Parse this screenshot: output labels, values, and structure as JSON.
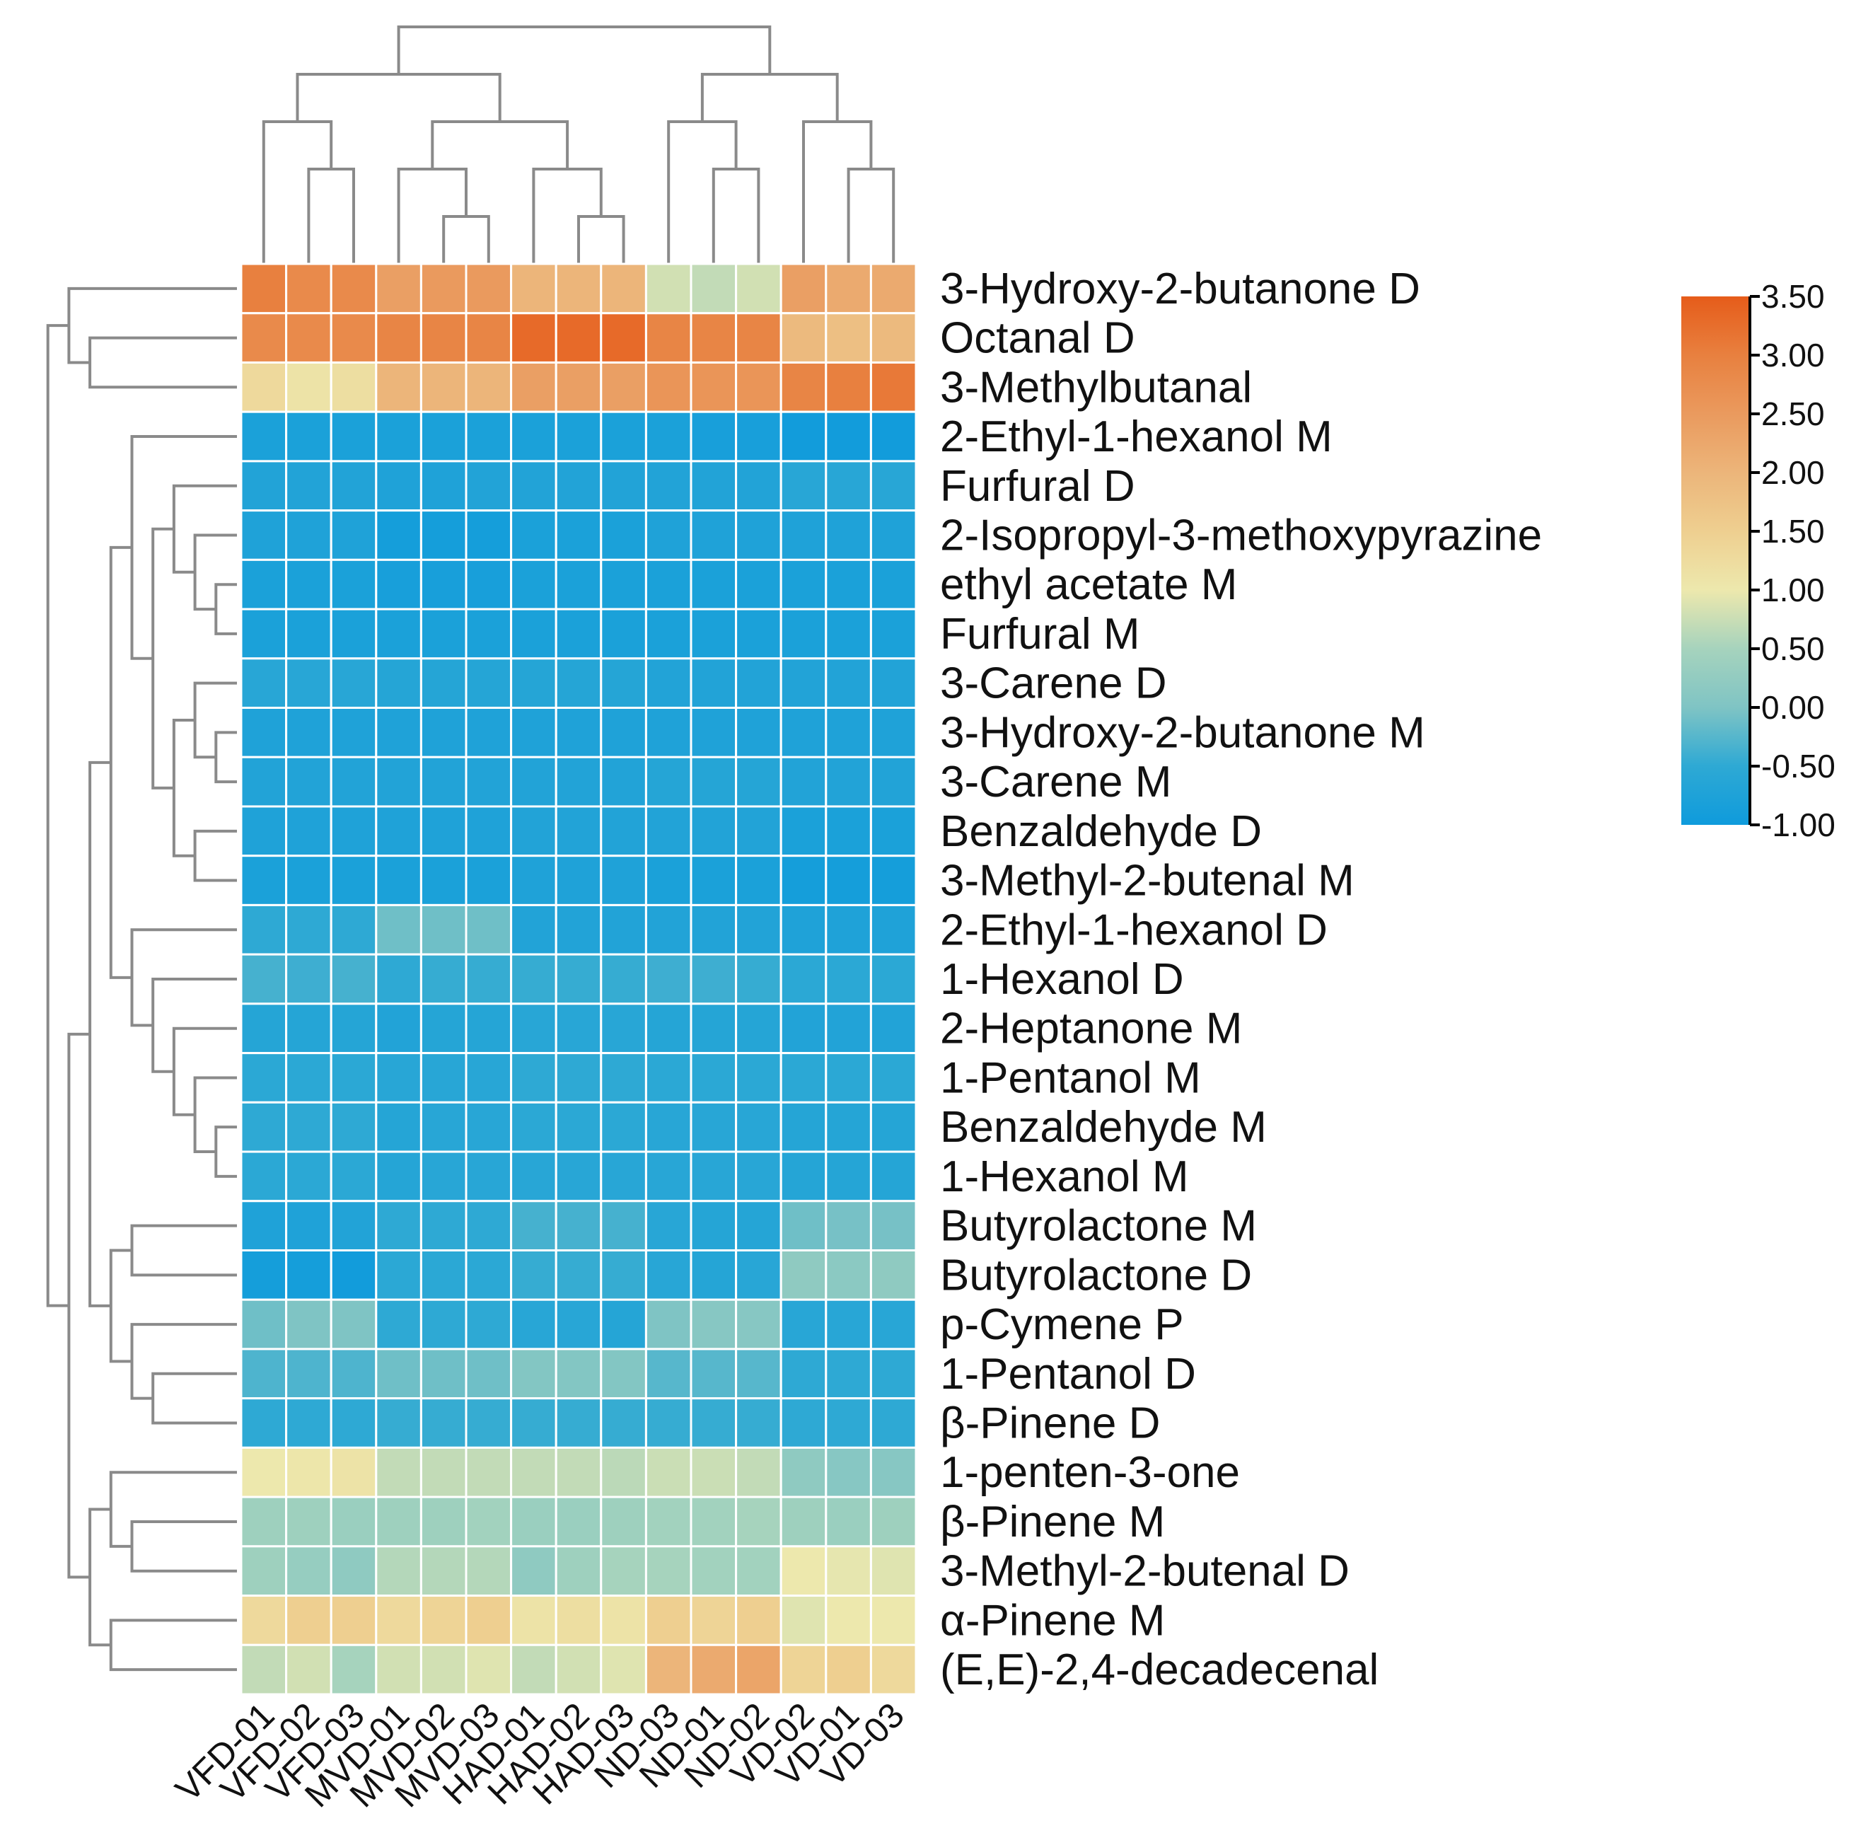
{
  "chart_data": {
    "type": "heatmap",
    "title": "",
    "columns": [
      "VFD-01",
      "VFD-02",
      "VFD-03",
      "MVD-01",
      "MVD-02",
      "MVD-03",
      "HAD-01",
      "HAD-02",
      "HAD-03",
      "ND-03",
      "ND-01",
      "ND-02",
      "VD-02",
      "VD-01",
      "VD-03"
    ],
    "rows": [
      "3-Hydroxy-2-butanone D",
      "Octanal D",
      "3-Methylbutanal",
      "2-Ethyl-1-hexanol M",
      "Furfural D",
      "2-Isopropyl-3-methoxypyrazine",
      "ethyl acetate M",
      "Furfural M",
      "3-Carene D",
      "3-Hydroxy-2-butanone M",
      "3-Carene M",
      "Benzaldehyde D",
      "3-Methyl-2-butenal M",
      "2-Ethyl-1-hexanol D",
      "1-Hexanol D",
      "2-Heptanone M",
      "1-Pentanol M",
      "Benzaldehyde M",
      "1-Hexanol M",
      "Butyrolactone M",
      "Butyrolactone D",
      "p-Cymene P",
      "1-Pentanol D",
      "β-Pinene D",
      "1-penten-3-one",
      "β-Pinene M",
      "3-Methyl-2-butenal D",
      "α-Pinene M",
      "(E,E)-2,4-decadecenal"
    ],
    "values": [
      [
        3.0,
        2.8,
        2.8,
        2.4,
        2.5,
        2.5,
        2.0,
        2.0,
        2.0,
        0.8,
        0.7,
        0.8,
        2.4,
        2.2,
        2.2
      ],
      [
        2.8,
        2.8,
        2.8,
        2.9,
        2.9,
        2.9,
        3.3,
        3.3,
        3.3,
        2.9,
        2.9,
        2.9,
        1.9,
        1.8,
        1.9
      ],
      [
        1.3,
        1.1,
        1.2,
        2.0,
        2.0,
        2.0,
        2.4,
        2.4,
        2.4,
        2.6,
        2.6,
        2.6,
        2.9,
        3.0,
        3.1
      ],
      [
        -0.8,
        -0.8,
        -0.8,
        -0.8,
        -0.8,
        -0.8,
        -0.8,
        -0.8,
        -0.8,
        -0.8,
        -0.85,
        -0.85,
        -0.95,
        -0.95,
        -0.95
      ],
      [
        -0.7,
        -0.7,
        -0.7,
        -0.75,
        -0.75,
        -0.7,
        -0.7,
        -0.7,
        -0.7,
        -0.7,
        -0.7,
        -0.7,
        -0.6,
        -0.6,
        -0.6
      ],
      [
        -0.75,
        -0.75,
        -0.75,
        -0.9,
        -0.9,
        -0.9,
        -0.8,
        -0.8,
        -0.8,
        -0.75,
        -0.75,
        -0.75,
        -0.75,
        -0.75,
        -0.75
      ],
      [
        -0.8,
        -0.8,
        -0.8,
        -0.85,
        -0.85,
        -0.85,
        -0.8,
        -0.8,
        -0.8,
        -0.8,
        -0.8,
        -0.8,
        -0.8,
        -0.8,
        -0.8
      ],
      [
        -0.8,
        -0.8,
        -0.8,
        -0.8,
        -0.8,
        -0.8,
        -0.8,
        -0.8,
        -0.8,
        -0.8,
        -0.8,
        -0.8,
        -0.8,
        -0.8,
        -0.8
      ],
      [
        -0.6,
        -0.6,
        -0.6,
        -0.65,
        -0.65,
        -0.65,
        -0.65,
        -0.65,
        -0.65,
        -0.7,
        -0.7,
        -0.7,
        -0.7,
        -0.7,
        -0.7
      ],
      [
        -0.75,
        -0.75,
        -0.75,
        -0.75,
        -0.75,
        -0.75,
        -0.75,
        -0.75,
        -0.75,
        -0.75,
        -0.75,
        -0.75,
        -0.75,
        -0.75,
        -0.75
      ],
      [
        -0.7,
        -0.7,
        -0.7,
        -0.7,
        -0.7,
        -0.7,
        -0.7,
        -0.7,
        -0.7,
        -0.65,
        -0.65,
        -0.65,
        -0.7,
        -0.7,
        -0.7
      ],
      [
        -0.75,
        -0.75,
        -0.75,
        -0.75,
        -0.75,
        -0.75,
        -0.7,
        -0.7,
        -0.7,
        -0.7,
        -0.7,
        -0.7,
        -0.8,
        -0.8,
        -0.8
      ],
      [
        -0.8,
        -0.8,
        -0.8,
        -0.8,
        -0.8,
        -0.8,
        -0.75,
        -0.75,
        -0.75,
        -0.8,
        -0.8,
        -0.8,
        -0.9,
        -0.9,
        -0.9
      ],
      [
        -0.5,
        -0.5,
        -0.5,
        -0.1,
        -0.1,
        -0.1,
        -0.7,
        -0.7,
        -0.7,
        -0.7,
        -0.7,
        -0.7,
        -0.75,
        -0.75,
        -0.75
      ],
      [
        -0.35,
        -0.4,
        -0.35,
        -0.5,
        -0.45,
        -0.45,
        -0.45,
        -0.45,
        -0.45,
        -0.4,
        -0.4,
        -0.45,
        -0.55,
        -0.55,
        -0.55
      ],
      [
        -0.65,
        -0.65,
        -0.65,
        -0.7,
        -0.65,
        -0.65,
        -0.6,
        -0.6,
        -0.6,
        -0.65,
        -0.65,
        -0.65,
        -0.7,
        -0.7,
        -0.7
      ],
      [
        -0.55,
        -0.55,
        -0.55,
        -0.6,
        -0.6,
        -0.6,
        -0.5,
        -0.5,
        -0.5,
        -0.55,
        -0.55,
        -0.55,
        -0.55,
        -0.55,
        -0.55
      ],
      [
        -0.5,
        -0.5,
        -0.5,
        -0.65,
        -0.6,
        -0.6,
        -0.55,
        -0.55,
        -0.55,
        -0.6,
        -0.6,
        -0.6,
        -0.65,
        -0.65,
        -0.65
      ],
      [
        -0.55,
        -0.55,
        -0.55,
        -0.65,
        -0.6,
        -0.6,
        -0.6,
        -0.6,
        -0.6,
        -0.6,
        -0.6,
        -0.6,
        -0.65,
        -0.65,
        -0.65
      ],
      [
        -0.75,
        -0.75,
        -0.7,
        -0.5,
        -0.5,
        -0.5,
        -0.35,
        -0.35,
        -0.35,
        -0.6,
        -0.65,
        -0.65,
        -0.1,
        -0.05,
        -0.05
      ],
      [
        -0.9,
        -0.9,
        -0.95,
        -0.55,
        -0.55,
        -0.55,
        -0.45,
        -0.45,
        -0.45,
        -0.6,
        -0.65,
        -0.6,
        0.2,
        0.15,
        0.2
      ],
      [
        -0.1,
        0.0,
        0.0,
        -0.5,
        -0.5,
        -0.5,
        -0.6,
        -0.6,
        -0.65,
        0.0,
        0.1,
        0.1,
        -0.6,
        -0.6,
        -0.6
      ],
      [
        -0.3,
        -0.3,
        -0.3,
        -0.1,
        -0.1,
        -0.1,
        0.05,
        0.05,
        0.05,
        -0.25,
        -0.25,
        -0.25,
        -0.5,
        -0.5,
        -0.5
      ],
      [
        -0.5,
        -0.5,
        -0.5,
        -0.45,
        -0.45,
        -0.45,
        -0.45,
        -0.45,
        -0.45,
        -0.45,
        -0.45,
        -0.45,
        -0.5,
        -0.5,
        -0.5
      ],
      [
        1.0,
        1.05,
        1.1,
        0.7,
        0.7,
        0.7,
        0.7,
        0.7,
        0.65,
        0.75,
        0.75,
        0.7,
        0.2,
        0.1,
        0.1
      ],
      [
        0.4,
        0.4,
        0.35,
        0.4,
        0.4,
        0.45,
        0.35,
        0.35,
        0.4,
        0.45,
        0.45,
        0.5,
        0.4,
        0.35,
        0.4
      ],
      [
        0.4,
        0.3,
        0.2,
        0.6,
        0.6,
        0.6,
        0.2,
        0.4,
        0.5,
        0.5,
        0.45,
        0.45,
        1.0,
        0.95,
        0.9
      ],
      [
        1.3,
        1.5,
        1.5,
        1.3,
        1.4,
        1.5,
        1.1,
        1.2,
        1.1,
        1.5,
        1.4,
        1.5,
        0.9,
        1.0,
        1.0
      ],
      [
        0.7,
        0.8,
        0.5,
        0.8,
        0.8,
        0.9,
        0.7,
        0.8,
        0.9,
        2.0,
        2.2,
        2.3,
        1.4,
        1.5,
        1.3
      ]
    ],
    "colorbar": {
      "range": [
        -1.0,
        3.5
      ],
      "ticks": [
        "3.50",
        "3.00",
        "2.50",
        "2.00",
        "1.50",
        "1.00",
        "0.50",
        "0.00",
        "-0.50",
        "-1.00"
      ],
      "tick_values": [
        3.5,
        3.0,
        2.5,
        2.0,
        1.5,
        1.0,
        0.5,
        0.0,
        -0.5,
        -1.0
      ],
      "colors": [
        "#0f9bdc",
        "#2ea9d4",
        "#7fc4c4",
        "#a6d3bd",
        "#ede8ad",
        "#eecf90",
        "#ecb57a",
        "#ea9a5e",
        "#e8803f",
        "#e65c1a"
      ],
      "placement": "right"
    },
    "column_dendrogram": [
      5,
      [
        4,
        [
          3,
          0,
          [
            2,
            1,
            2
          ]
        ],
        [
          3,
          [
            2,
            3,
            [
              1,
              4,
              5
            ]
          ],
          [
            2,
            6,
            [
              1,
              7,
              8
            ]
          ]
        ]
      ],
      [
        4,
        [
          3,
          9,
          [
            2,
            10,
            11
          ]
        ],
        [
          3,
          12,
          [
            2,
            13,
            14
          ]
        ]
      ]
    ],
    "row_dendrogram": [
      9,
      [
        8,
        0,
        [
          7,
          1,
          2
        ]
      ],
      [
        8,
        [
          7,
          [
            6,
            [
              5,
              3,
              [
                4,
                [
                  3,
                  4,
                  [
                    2,
                    5,
                    [
                      1,
                      6,
                      7
                    ]
                  ]
                ],
                [
                  3,
                  [
                    2,
                    8,
                    [
                      1,
                      9,
                      10
                    ]
                  ],
                  [
                    2,
                    11,
                    12
                  ]
                ]
              ]
            ],
            [
              5,
              13,
              [
                4,
                14,
                [
                  3,
                  15,
                  [
                    2,
                    16,
                    [
                      1,
                      17,
                      18
                    ]
                  ]
                ]
              ]
            ]
          ],
          [
            6,
            [
              5,
              19,
              20
            ],
            [
              5,
              21,
              [
                4,
                22,
                23
              ]
            ]
          ]
        ],
        [
          7,
          [
            6,
            24,
            [
              5,
              25,
              26
            ]
          ],
          [
            6,
            27,
            28
          ]
        ]
      ]
    ]
  }
}
